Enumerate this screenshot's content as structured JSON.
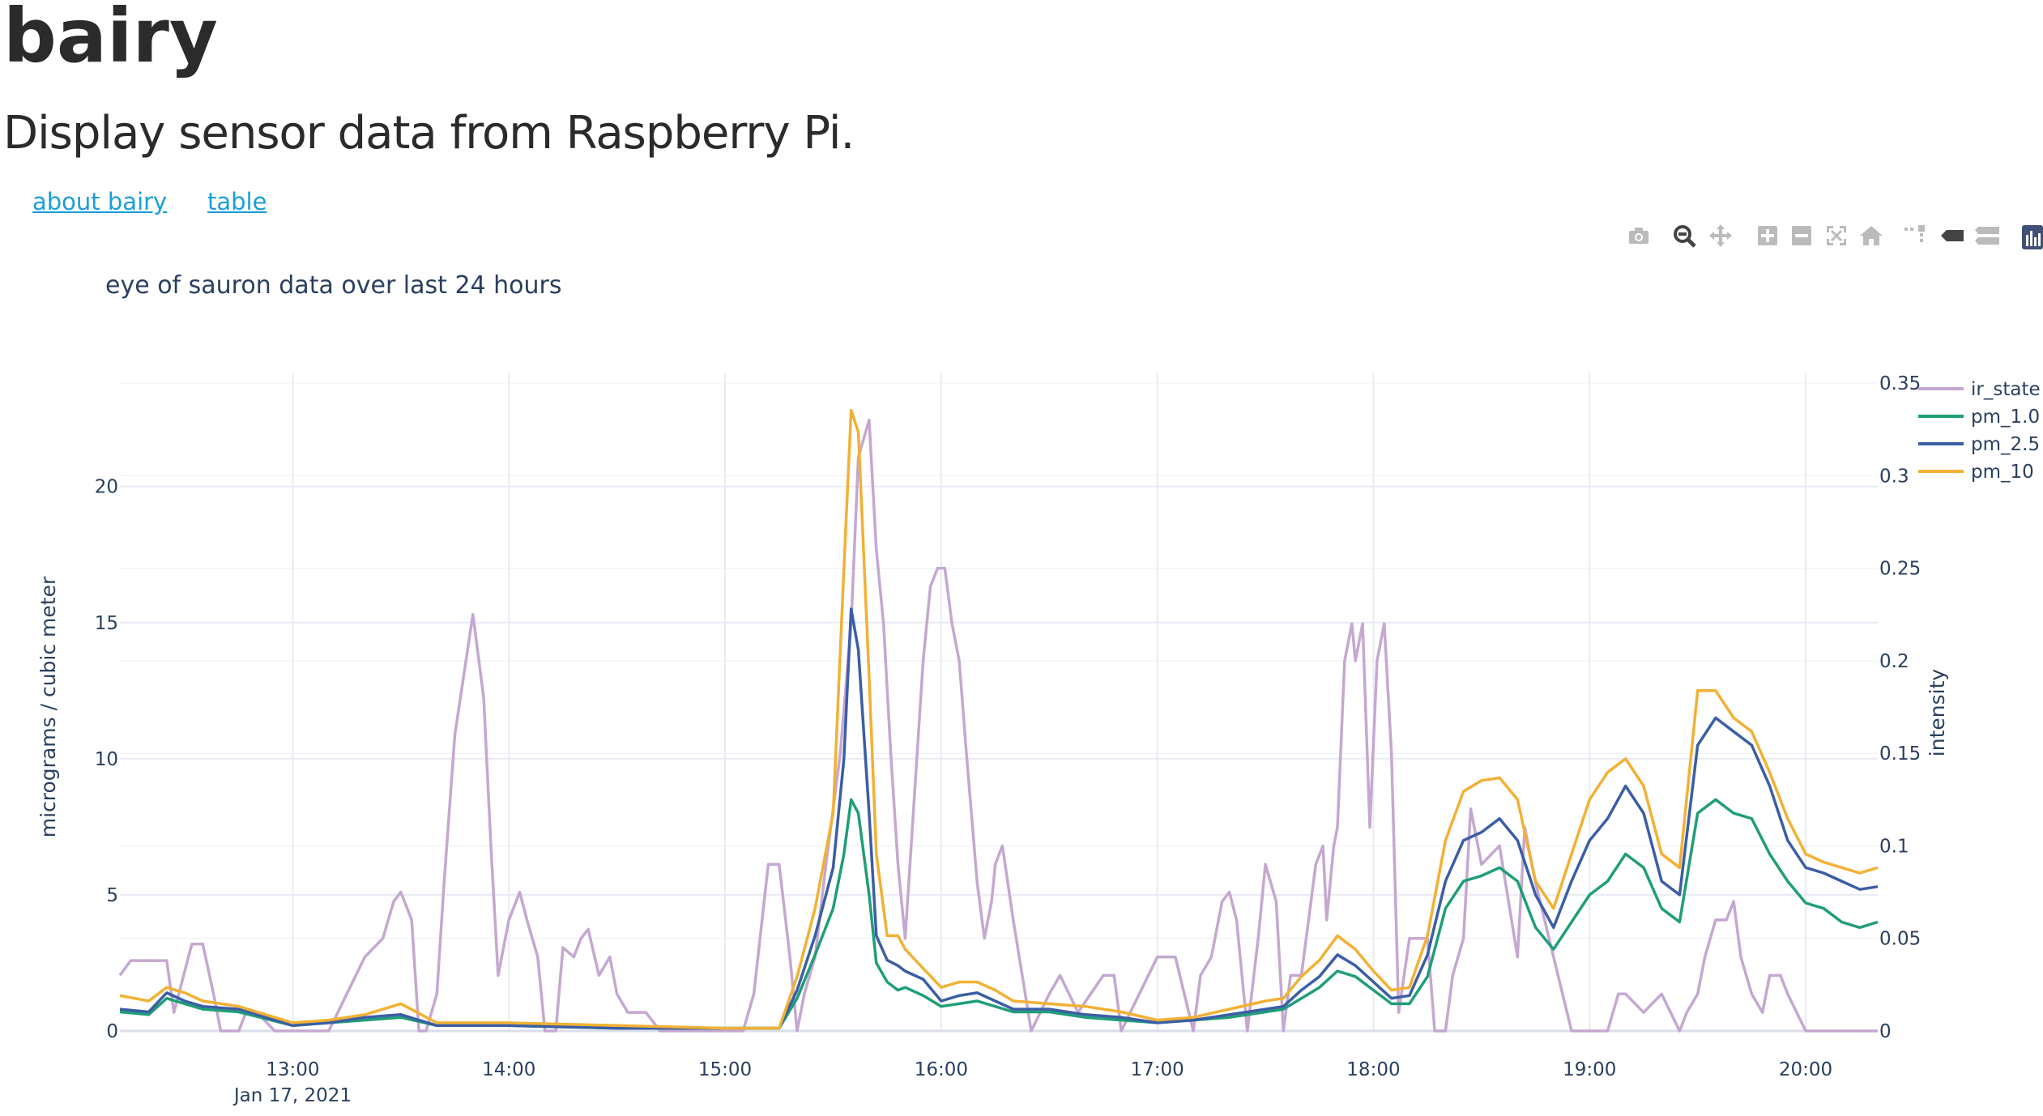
{
  "header": {
    "title": "bairy",
    "subtitle": "Display sensor data from Raspberry Pi."
  },
  "nav": {
    "links": [
      {
        "label": "about bairy"
      },
      {
        "label": "table"
      }
    ]
  },
  "modebar": {
    "buttons": [
      "camera-icon",
      "zoom-icon",
      "pan-icon",
      "zoom-in-icon",
      "zoom-out-icon",
      "autoscale-icon",
      "reset-axes-icon",
      "spikelines-icon",
      "hover-closest-icon",
      "hover-compare-icon",
      "plotly-logo-icon"
    ]
  },
  "colors": {
    "ir_state": "#c5a8d1",
    "pm_1.0": "#1f9e79",
    "pm_2.5": "#3b5ea5",
    "pm_10": "#f2b134",
    "grid": "#e8ebf3",
    "axis_text": "#2a3f5f"
  },
  "chart_data": {
    "type": "line",
    "title": "eye of sauron data over last 24 hours",
    "ylabel": "micrograms / cubic meter",
    "y2label": "intensity",
    "x_ticks": [
      "13:00",
      "14:00",
      "15:00",
      "16:00",
      "17:00",
      "18:00",
      "19:00",
      "20:00"
    ],
    "x_date_label": "Jan 17, 2021",
    "xlim": [
      "12:12",
      "20:20"
    ],
    "ylim": [
      0,
      23.8
    ],
    "y_ticks": [
      "0",
      "5",
      "10",
      "15",
      "20"
    ],
    "y2lim": [
      0,
      0.35
    ],
    "y2_ticks": [
      "0",
      "0.05",
      "0.1",
      "0.15",
      "0.2",
      "0.25",
      "0.3",
      "0.35"
    ],
    "legend_position": "top-right",
    "grid": true,
    "series": [
      {
        "name": "ir_state",
        "axis": "y2",
        "x": [
          "12:12",
          "12:15",
          "12:17",
          "12:25",
          "12:27",
          "12:32",
          "12:35",
          "12:38",
          "12:40",
          "12:45",
          "12:47",
          "12:50",
          "12:55",
          "12:57",
          "13:10",
          "13:15",
          "13:20",
          "13:25",
          "13:28",
          "13:30",
          "13:33",
          "13:35",
          "13:37",
          "13:40",
          "13:42",
          "13:45",
          "13:50",
          "13:53",
          "13:55",
          "13:57",
          "14:00",
          "14:03",
          "14:05",
          "14:08",
          "14:10",
          "14:13",
          "14:15",
          "14:18",
          "14:20",
          "14:22",
          "14:25",
          "14:28",
          "14:30",
          "14:33",
          "14:35",
          "14:38",
          "14:42",
          "14:45",
          "14:50",
          "14:55",
          "15:00",
          "15:03",
          "15:05",
          "15:08",
          "15:12",
          "15:15",
          "15:18",
          "15:20",
          "15:22",
          "15:25",
          "15:28",
          "15:30",
          "15:32",
          "15:35",
          "15:37",
          "15:40",
          "15:42",
          "15:44",
          "15:46",
          "15:48",
          "15:50",
          "15:52",
          "15:55",
          "15:57",
          "15:59",
          "16:01",
          "16:03",
          "16:05",
          "16:07",
          "16:10",
          "16:12",
          "16:14",
          "16:15",
          "16:17",
          "16:20",
          "16:25",
          "16:30",
          "16:33",
          "16:38",
          "16:45",
          "16:48",
          "16:50",
          "16:55",
          "17:00",
          "17:02",
          "17:05",
          "17:10",
          "17:12",
          "17:15",
          "17:18",
          "17:20",
          "17:22",
          "17:25",
          "17:28",
          "17:30",
          "17:33",
          "17:35",
          "17:37",
          "17:40",
          "17:42",
          "17:44",
          "17:46",
          "17:47",
          "17:49",
          "17:50",
          "17:52",
          "17:54",
          "17:55",
          "17:57",
          "17:59",
          "18:01",
          "18:03",
          "18:05",
          "18:07",
          "18:10",
          "18:12",
          "18:15",
          "18:17",
          "18:20",
          "18:22",
          "18:25",
          "18:27",
          "18:30",
          "18:35",
          "18:40",
          "18:42",
          "18:45",
          "18:50",
          "18:55",
          "19:00",
          "19:05",
          "19:08",
          "19:10",
          "19:15",
          "19:20",
          "19:25",
          "19:27",
          "19:30",
          "19:32",
          "19:35",
          "19:38",
          "19:40",
          "19:42",
          "19:45",
          "19:48",
          "19:50",
          "19:53",
          "19:55",
          "20:00",
          "20:05",
          "20:20"
        ],
        "values": [
          0.03,
          0.038,
          0.038,
          0.038,
          0.01,
          0.047,
          0.047,
          0.02,
          0.0,
          0.0,
          0.01,
          0.01,
          0.0,
          0.0,
          0.0,
          0.02,
          0.04,
          0.05,
          0.07,
          0.075,
          0.06,
          0.0,
          0.0,
          0.02,
          0.08,
          0.16,
          0.225,
          0.18,
          0.1,
          0.03,
          0.06,
          0.075,
          0.06,
          0.04,
          0.0,
          0.0,
          0.045,
          0.04,
          0.05,
          0.055,
          0.03,
          0.04,
          0.02,
          0.01,
          0.01,
          0.01,
          0.0,
          0.0,
          0.0,
          0.0,
          0.0,
          0.0,
          0.0,
          0.02,
          0.09,
          0.09,
          0.04,
          0.0,
          0.02,
          0.04,
          0.09,
          0.12,
          0.15,
          0.22,
          0.31,
          0.33,
          0.26,
          0.22,
          0.15,
          0.09,
          0.05,
          0.11,
          0.2,
          0.24,
          0.25,
          0.25,
          0.22,
          0.2,
          0.15,
          0.08,
          0.05,
          0.07,
          0.09,
          0.1,
          0.06,
          0.0,
          0.02,
          0.03,
          0.01,
          0.03,
          0.03,
          0.0,
          0.02,
          0.04,
          0.04,
          0.04,
          0.0,
          0.03,
          0.04,
          0.07,
          0.075,
          0.06,
          0.0,
          0.05,
          0.09,
          0.07,
          0.0,
          0.03,
          0.03,
          0.06,
          0.09,
          0.1,
          0.06,
          0.1,
          0.11,
          0.2,
          0.22,
          0.2,
          0.22,
          0.11,
          0.2,
          0.22,
          0.15,
          0.01,
          0.05,
          0.05,
          0.05,
          0.0,
          0.0,
          0.03,
          0.05,
          0.12,
          0.09,
          0.1,
          0.04,
          0.11,
          0.08,
          0.04,
          0.0,
          0.0,
          0.0,
          0.02,
          0.02,
          0.01,
          0.02,
          0.0,
          0.01,
          0.02,
          0.04,
          0.06,
          0.06,
          0.07,
          0.04,
          0.02,
          0.01,
          0.03,
          0.03,
          0.02,
          0.0,
          0.0,
          0.0
        ]
      },
      {
        "name": "pm_1.0",
        "axis": "y",
        "x": [
          "12:12",
          "12:20",
          "12:25",
          "12:30",
          "12:35",
          "12:45",
          "13:00",
          "13:10",
          "13:20",
          "13:30",
          "13:40",
          "14:00",
          "14:30",
          "15:00",
          "15:15",
          "15:20",
          "15:25",
          "15:30",
          "15:33",
          "15:35",
          "15:37",
          "15:40",
          "15:42",
          "15:45",
          "15:48",
          "15:50",
          "15:55",
          "16:00",
          "16:05",
          "16:10",
          "16:15",
          "16:20",
          "16:30",
          "16:40",
          "16:50",
          "17:00",
          "17:10",
          "17:20",
          "17:30",
          "17:35",
          "17:40",
          "17:45",
          "17:50",
          "17:55",
          "18:00",
          "18:05",
          "18:10",
          "18:15",
          "18:20",
          "18:25",
          "18:30",
          "18:35",
          "18:40",
          "18:45",
          "18:50",
          "18:55",
          "19:00",
          "19:05",
          "19:10",
          "19:15",
          "19:20",
          "19:25",
          "19:30",
          "19:35",
          "19:40",
          "19:45",
          "19:50",
          "19:55",
          "20:00",
          "20:05",
          "20:10",
          "20:15",
          "20:20"
        ],
        "values": [
          0.7,
          0.6,
          1.2,
          1.0,
          0.8,
          0.7,
          0.2,
          0.3,
          0.4,
          0.5,
          0.2,
          0.2,
          0.1,
          0.1,
          0.1,
          1.2,
          2.8,
          4.5,
          6.5,
          8.5,
          8.0,
          5.0,
          2.5,
          1.8,
          1.5,
          1.6,
          1.3,
          0.9,
          1.0,
          1.1,
          0.9,
          0.7,
          0.7,
          0.5,
          0.4,
          0.3,
          0.4,
          0.5,
          0.7,
          0.8,
          1.2,
          1.6,
          2.2,
          2.0,
          1.5,
          1.0,
          1.0,
          2.0,
          4.5,
          5.5,
          5.7,
          6.0,
          5.5,
          3.8,
          3.0,
          4.0,
          5.0,
          5.5,
          6.5,
          6.0,
          4.5,
          4.0,
          8.0,
          8.5,
          8.0,
          7.8,
          6.5,
          5.5,
          4.7,
          4.5,
          4.0,
          3.8,
          4.0
        ]
      },
      {
        "name": "pm_2.5",
        "axis": "y",
        "x": [
          "12:12",
          "12:20",
          "12:25",
          "12:30",
          "12:35",
          "12:45",
          "13:00",
          "13:10",
          "13:20",
          "13:30",
          "13:40",
          "14:00",
          "14:30",
          "15:00",
          "15:15",
          "15:20",
          "15:25",
          "15:30",
          "15:33",
          "15:35",
          "15:37",
          "15:40",
          "15:42",
          "15:45",
          "15:48",
          "15:50",
          "15:55",
          "16:00",
          "16:05",
          "16:10",
          "16:15",
          "16:20",
          "16:30",
          "16:40",
          "16:50",
          "17:00",
          "17:10",
          "17:20",
          "17:30",
          "17:35",
          "17:40",
          "17:45",
          "17:50",
          "17:55",
          "18:00",
          "18:05",
          "18:10",
          "18:15",
          "18:20",
          "18:25",
          "18:30",
          "18:35",
          "18:40",
          "18:45",
          "18:50",
          "18:55",
          "19:00",
          "19:05",
          "19:10",
          "19:15",
          "19:20",
          "19:25",
          "19:30",
          "19:35",
          "19:40",
          "19:45",
          "19:50",
          "19:55",
          "20:00",
          "20:05",
          "20:10",
          "20:15",
          "20:20"
        ],
        "values": [
          0.8,
          0.7,
          1.4,
          1.1,
          0.9,
          0.8,
          0.2,
          0.3,
          0.5,
          0.6,
          0.2,
          0.2,
          0.1,
          0.1,
          0.1,
          1.5,
          3.5,
          6.0,
          10.0,
          15.5,
          14.0,
          8.0,
          3.5,
          2.6,
          2.4,
          2.2,
          1.9,
          1.1,
          1.3,
          1.4,
          1.1,
          0.8,
          0.8,
          0.6,
          0.5,
          0.3,
          0.4,
          0.6,
          0.8,
          0.9,
          1.5,
          2.0,
          2.8,
          2.4,
          1.8,
          1.2,
          1.3,
          2.8,
          5.5,
          7.0,
          7.3,
          7.8,
          7.0,
          5.0,
          3.8,
          5.5,
          7.0,
          7.8,
          9.0,
          8.0,
          5.5,
          5.0,
          10.5,
          11.5,
          11.0,
          10.5,
          9.0,
          7.0,
          6.0,
          5.8,
          5.5,
          5.2,
          5.3
        ]
      },
      {
        "name": "pm_10",
        "axis": "y",
        "x": [
          "12:12",
          "12:20",
          "12:25",
          "12:30",
          "12:35",
          "12:45",
          "13:00",
          "13:10",
          "13:20",
          "13:30",
          "13:40",
          "14:00",
          "14:30",
          "15:00",
          "15:15",
          "15:20",
          "15:25",
          "15:30",
          "15:33",
          "15:35",
          "15:37",
          "15:40",
          "15:42",
          "15:45",
          "15:48",
          "15:50",
          "15:55",
          "16:00",
          "16:05",
          "16:10",
          "16:15",
          "16:20",
          "16:30",
          "16:40",
          "16:50",
          "17:00",
          "17:10",
          "17:20",
          "17:30",
          "17:35",
          "17:40",
          "17:45",
          "17:50",
          "17:55",
          "18:00",
          "18:05",
          "18:10",
          "18:15",
          "18:20",
          "18:25",
          "18:30",
          "18:35",
          "18:40",
          "18:45",
          "18:50",
          "18:55",
          "19:00",
          "19:05",
          "19:10",
          "19:15",
          "19:20",
          "19:25",
          "19:30",
          "19:35",
          "19:40",
          "19:45",
          "19:50",
          "19:55",
          "20:00",
          "20:05",
          "20:10",
          "20:15",
          "20:20"
        ],
        "values": [
          1.3,
          1.1,
          1.6,
          1.4,
          1.1,
          0.9,
          0.3,
          0.4,
          0.6,
          1.0,
          0.3,
          0.3,
          0.2,
          0.1,
          0.1,
          2.0,
          4.5,
          8.0,
          17.0,
          22.8,
          22.0,
          13.0,
          6.5,
          3.5,
          3.5,
          3.0,
          2.3,
          1.6,
          1.8,
          1.8,
          1.5,
          1.1,
          1.0,
          0.9,
          0.7,
          0.4,
          0.5,
          0.8,
          1.1,
          1.2,
          2.0,
          2.6,
          3.5,
          3.0,
          2.2,
          1.5,
          1.6,
          3.5,
          7.0,
          8.8,
          9.2,
          9.3,
          8.5,
          5.5,
          4.5,
          6.5,
          8.5,
          9.5,
          10.0,
          9.0,
          6.5,
          6.0,
          12.5,
          12.5,
          11.5,
          11.0,
          9.5,
          7.8,
          6.5,
          6.2,
          6.0,
          5.8,
          6.0
        ]
      }
    ]
  }
}
